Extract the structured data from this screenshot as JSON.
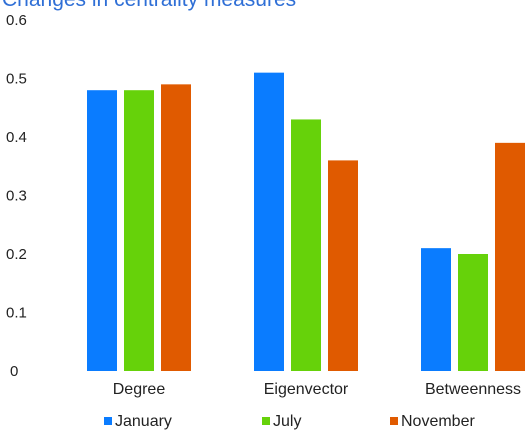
{
  "chart_data": {
    "type": "bar",
    "title": "Changes in centrality measures",
    "categories": [
      "Degree",
      "Eigenvector",
      "Betweenness"
    ],
    "series": [
      {
        "name": "January",
        "color": "#0a7cff",
        "values": [
          0.48,
          0.51,
          0.21
        ]
      },
      {
        "name": "July",
        "color": "#66d20a",
        "values": [
          0.48,
          0.43,
          0.2
        ]
      },
      {
        "name": "November",
        "color": "#e05a00",
        "values": [
          0.49,
          0.36,
          0.39
        ]
      }
    ],
    "ylim": [
      0,
      0.6
    ],
    "yticks": [
      "0",
      "0.1",
      "0.2",
      "0.3",
      "0.4",
      "0.5",
      "0.6"
    ],
    "xlabel": "",
    "ylabel": "",
    "grid": false,
    "legend": "bottom"
  }
}
